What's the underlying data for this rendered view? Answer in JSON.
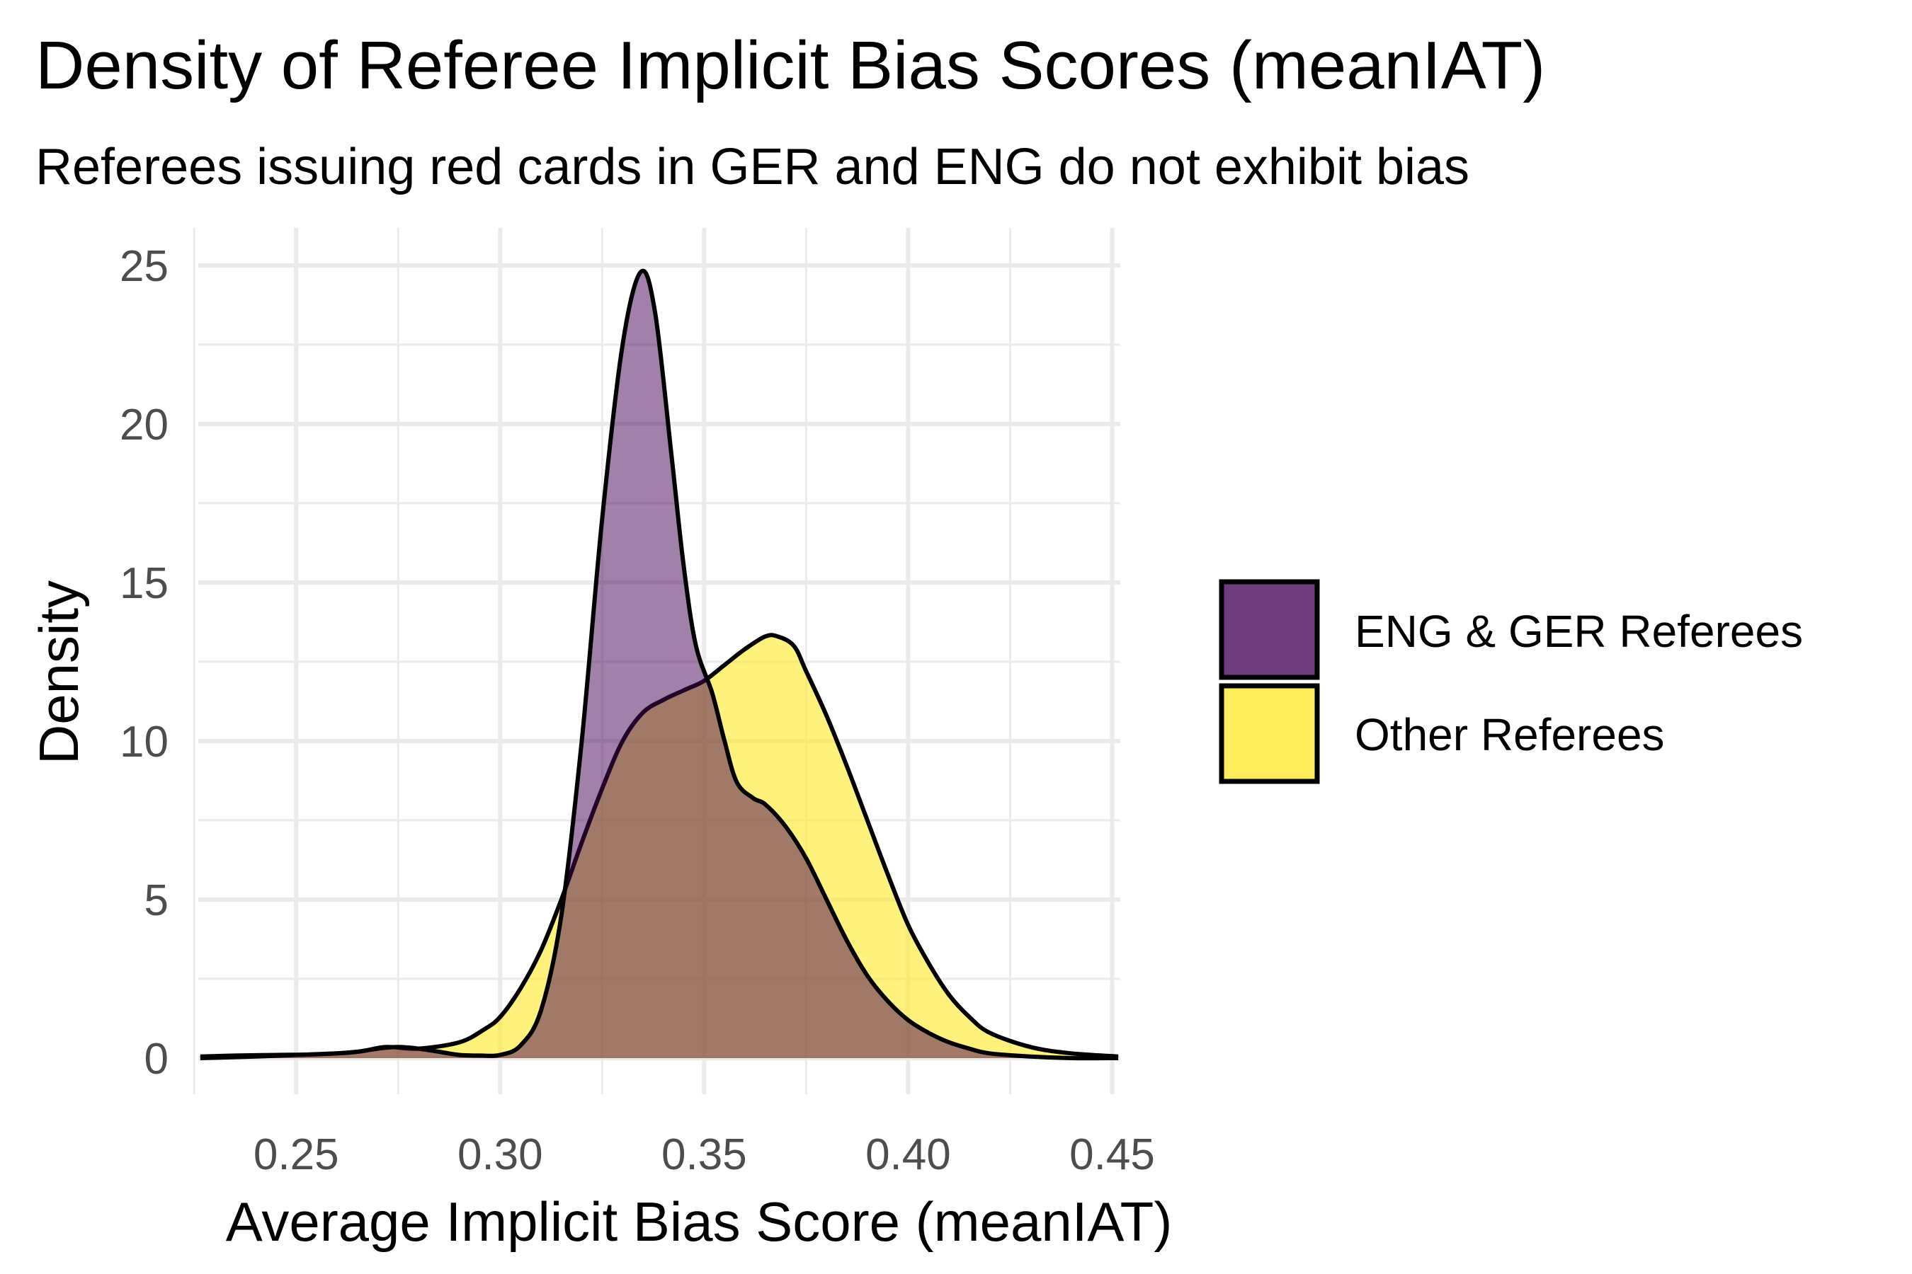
{
  "chart_data": {
    "type": "area",
    "title": "Density of Referee Implicit Bias Scores (meanIAT)",
    "subtitle": "Referees issuing red cards in GER and ENG do not exhibit bias",
    "xlabel": "Average Implicit Bias Score (meanIAT)",
    "ylabel": "Density",
    "xlim": [
      0.226,
      0.452
    ],
    "ylim": [
      0,
      25
    ],
    "xticks": [
      0.25,
      0.3,
      0.35,
      0.4,
      0.45
    ],
    "xtick_labels": [
      "0.25",
      "0.30",
      "0.35",
      "0.40",
      "0.45"
    ],
    "yticks": [
      0,
      5,
      10,
      15,
      20,
      25
    ],
    "ytick_labels": [
      "0",
      "5",
      "10",
      "15",
      "20",
      "25"
    ],
    "grid": true,
    "legend_position": "right",
    "series": [
      {
        "name": "Other Referees",
        "color": "#FDE725",
        "x": [
          0.2265,
          0.235,
          0.245,
          0.255,
          0.265,
          0.272,
          0.28,
          0.29,
          0.296,
          0.3,
          0.305,
          0.31,
          0.315,
          0.32,
          0.325,
          0.33,
          0.335,
          0.34,
          0.345,
          0.35,
          0.355,
          0.36,
          0.365,
          0.368,
          0.372,
          0.375,
          0.38,
          0.385,
          0.39,
          0.395,
          0.4,
          0.405,
          0.41,
          0.415,
          0.42,
          0.43,
          0.44,
          0.4515
        ],
        "y": [
          0.05,
          0.08,
          0.1,
          0.12,
          0.2,
          0.35,
          0.3,
          0.5,
          0.9,
          1.3,
          2.2,
          3.4,
          5.0,
          6.8,
          8.5,
          10.0,
          10.9,
          11.3,
          11.6,
          11.9,
          12.4,
          12.9,
          13.3,
          13.3,
          13.0,
          12.2,
          10.8,
          9.2,
          7.5,
          5.8,
          4.2,
          3.0,
          2.0,
          1.3,
          0.8,
          0.35,
          0.15,
          0.05
        ]
      },
      {
        "name": "ENG & GER Referees",
        "color": "#440154",
        "x": [
          0.2265,
          0.24,
          0.25,
          0.26,
          0.265,
          0.27,
          0.275,
          0.28,
          0.285,
          0.29,
          0.295,
          0.3,
          0.305,
          0.31,
          0.315,
          0.32,
          0.325,
          0.33,
          0.3345,
          0.338,
          0.342,
          0.345,
          0.348,
          0.352,
          0.355,
          0.358,
          0.362,
          0.365,
          0.37,
          0.375,
          0.38,
          0.385,
          0.39,
          0.395,
          0.4,
          0.405,
          0.41,
          0.415,
          0.42,
          0.43,
          0.44,
          0.4515
        ],
        "y": [
          0.0,
          0.05,
          0.1,
          0.15,
          0.2,
          0.3,
          0.35,
          0.3,
          0.2,
          0.1,
          0.08,
          0.1,
          0.4,
          1.5,
          4.5,
          10.0,
          17.0,
          22.5,
          24.8,
          23.5,
          19.0,
          15.5,
          13.0,
          11.5,
          10.0,
          8.7,
          8.2,
          8.0,
          7.3,
          6.3,
          5.0,
          3.7,
          2.6,
          1.8,
          1.2,
          0.8,
          0.5,
          0.3,
          0.15,
          0.05,
          0.0,
          0.0
        ]
      }
    ]
  },
  "legend": {
    "items": [
      {
        "label": "ENG & GER Referees",
        "color": "#440154"
      },
      {
        "label": "Other Referees",
        "color": "#FDE725"
      }
    ]
  }
}
